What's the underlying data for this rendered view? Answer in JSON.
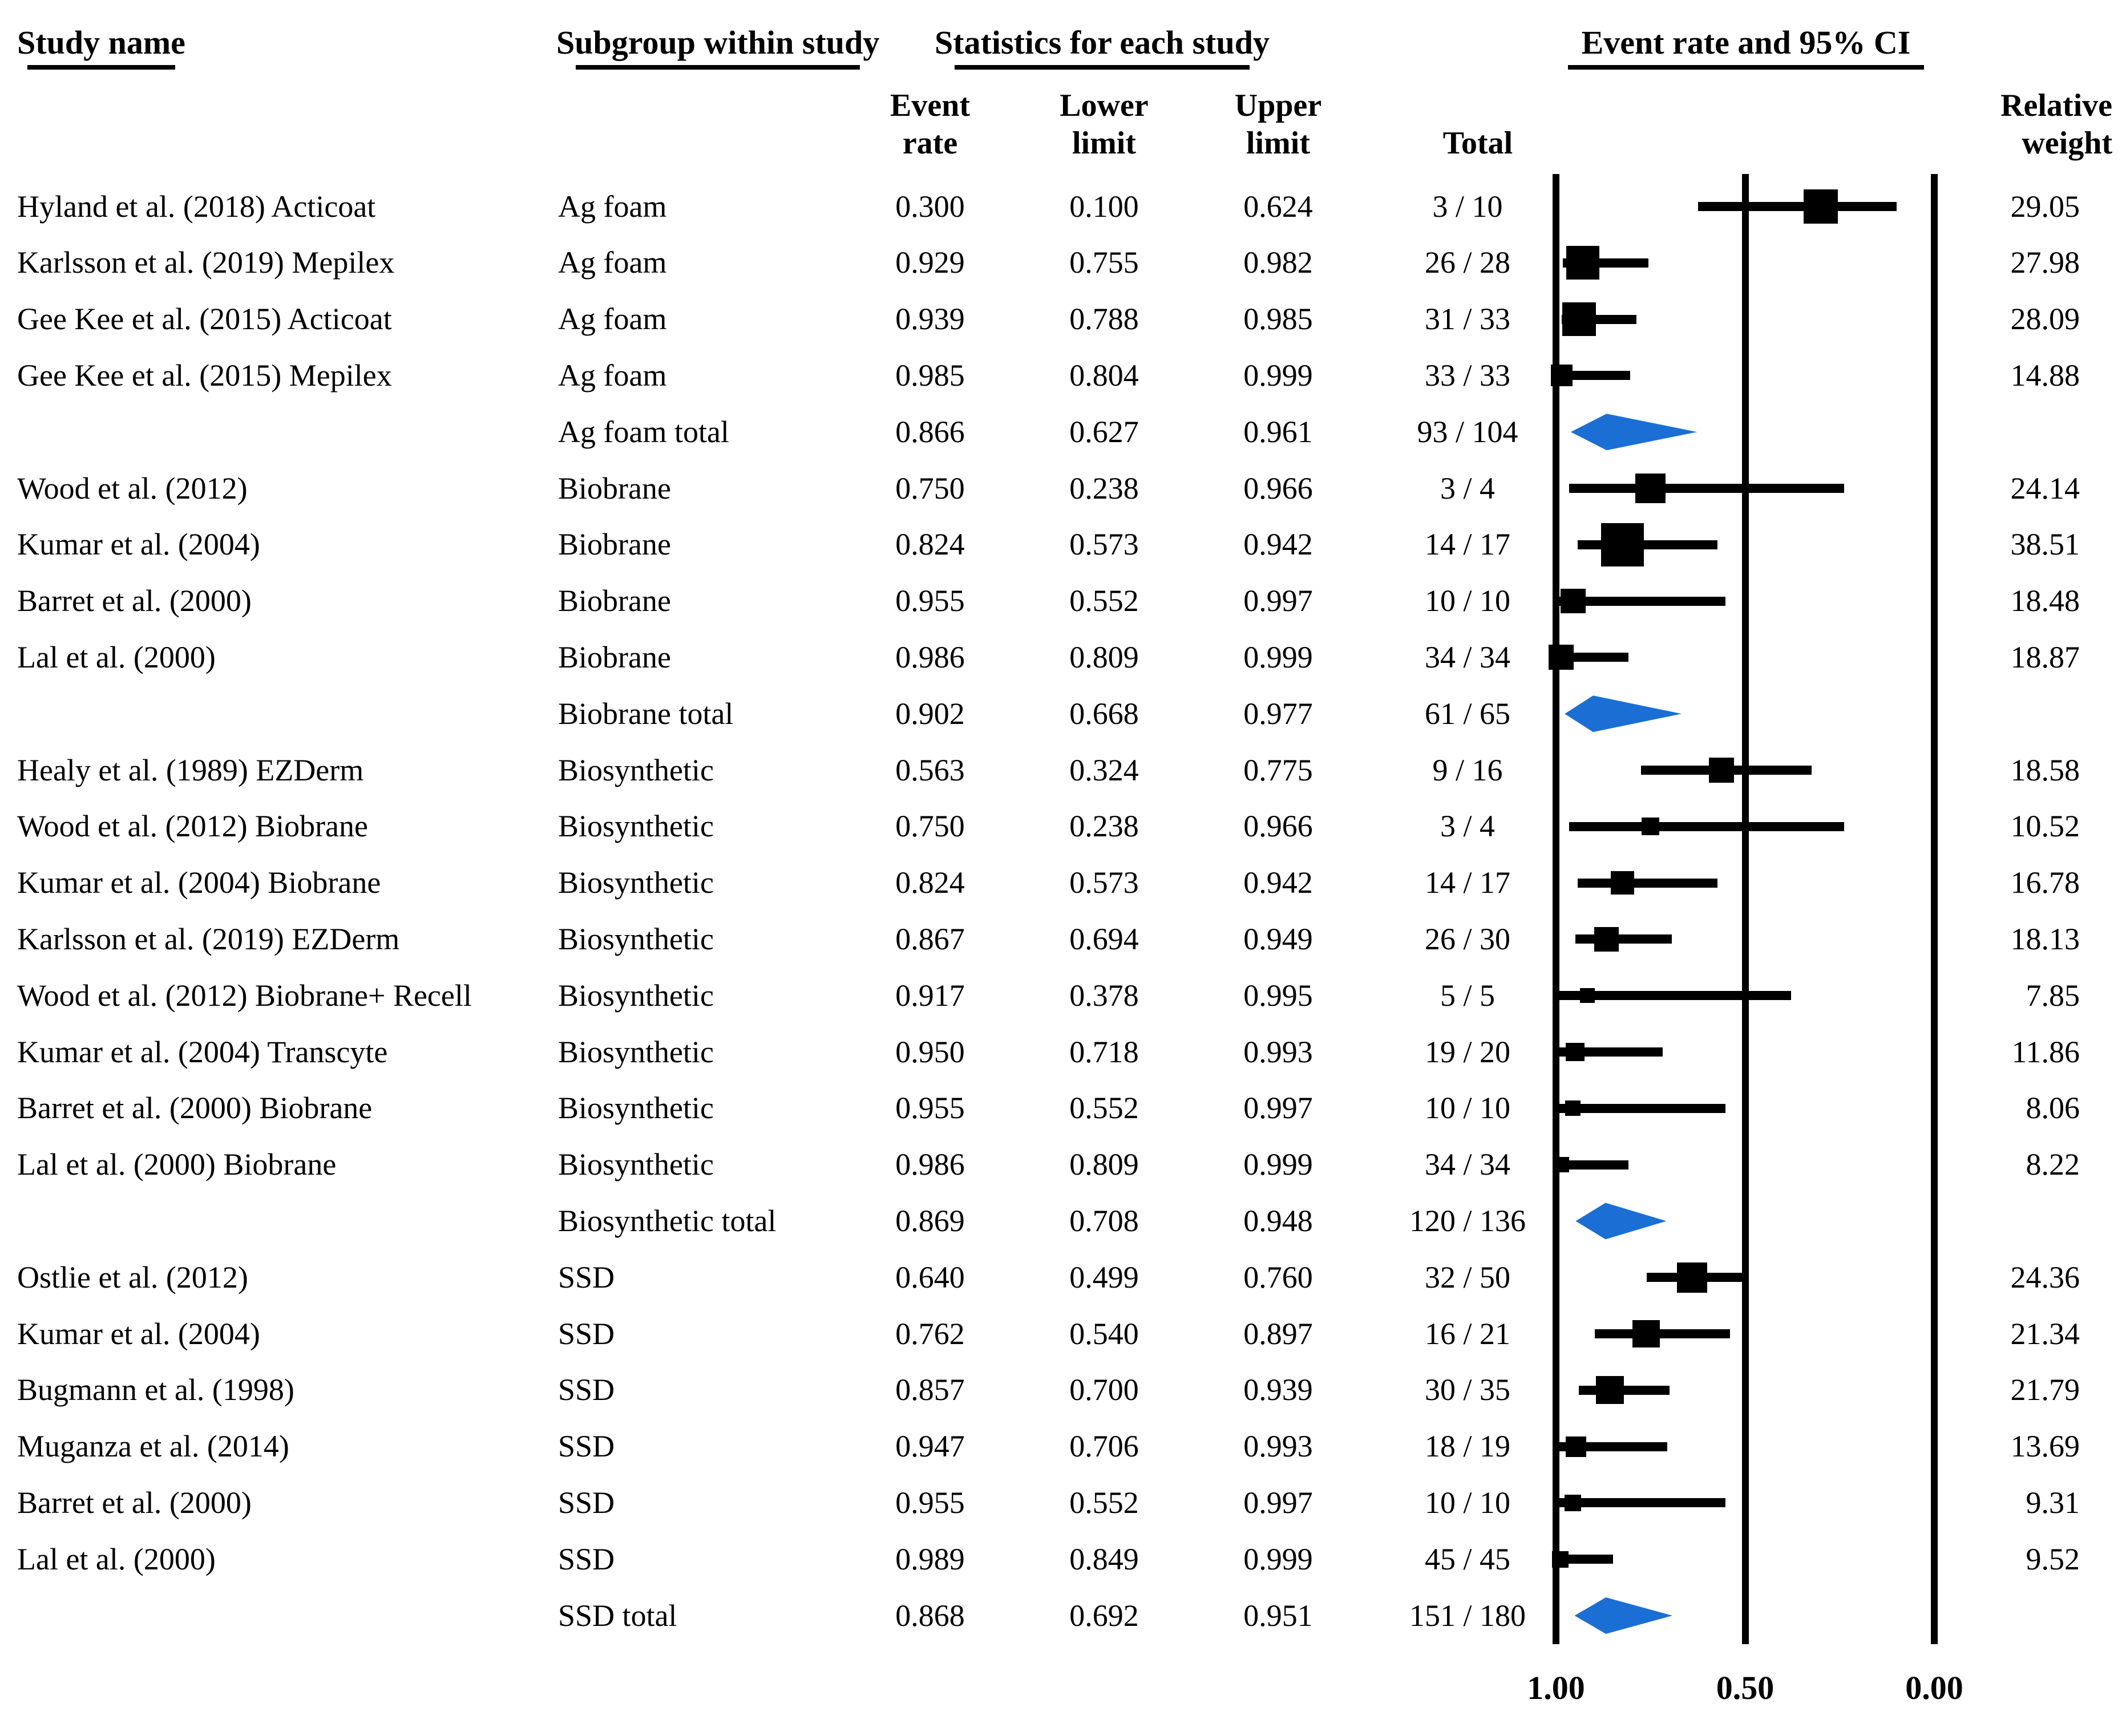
{
  "header": {
    "study_name": "Study name",
    "subgroup": "Subgroup within study",
    "statistics": "Statistics for each study",
    "event_rate_ci": "Event rate and 95% CI"
  },
  "column_headers": {
    "event_line1": "Event",
    "event_line2": "rate",
    "lower_line1": "Lower",
    "lower_line2": "limit",
    "upper_line1": "Upper",
    "upper_line2": "limit",
    "total": "Total",
    "weight_line1": "Relative",
    "weight_line2": "weight"
  },
  "colors": {
    "diamond_fill": "#1B6FD4",
    "marker_fill": "#000000",
    "axis_line": "#000000"
  },
  "chart_data": {
    "type": "forest",
    "title": "Event rate and 95% CI",
    "x_axis": {
      "reversed": true,
      "range": [
        0,
        1
      ],
      "ticks": [
        {
          "label": "1.00",
          "value": 1.0
        },
        {
          "label": "0.50",
          "value": 0.5
        },
        {
          "label": "0.00",
          "value": 0.0
        }
      ]
    },
    "rows": [
      {
        "study": "Hyland et al. (2018) Acticoat",
        "subgroup": "Ag foam",
        "er": "0.300",
        "ll": "0.100",
        "ul": "0.624",
        "total": "3 / 10",
        "weight": "29.05",
        "is_total": false
      },
      {
        "study": "Karlsson et al. (2019) Mepilex",
        "subgroup": "Ag foam",
        "er": "0.929",
        "ll": "0.755",
        "ul": "0.982",
        "total": "26 / 28",
        "weight": "27.98",
        "is_total": false
      },
      {
        "study": "Gee Kee et al. (2015) Acticoat",
        "subgroup": "Ag foam",
        "er": "0.939",
        "ll": "0.788",
        "ul": "0.985",
        "total": "31 / 33",
        "weight": "28.09",
        "is_total": false
      },
      {
        "study": "Gee Kee et al. (2015) Mepilex",
        "subgroup": "Ag foam",
        "er": "0.985",
        "ll": "0.804",
        "ul": "0.999",
        "total": "33 / 33",
        "weight": "14.88",
        "is_total": false
      },
      {
        "study": "",
        "subgroup": "Ag foam total",
        "er": "0.866",
        "ll": "0.627",
        "ul": "0.961",
        "total": "93 / 104",
        "weight": "",
        "is_total": true
      },
      {
        "study": "Wood et al. (2012)",
        "subgroup": "Biobrane",
        "er": "0.750",
        "ll": "0.238",
        "ul": "0.966",
        "total": "3 / 4",
        "weight": "24.14",
        "is_total": false
      },
      {
        "study": "Kumar et al. (2004)",
        "subgroup": "Biobrane",
        "er": "0.824",
        "ll": "0.573",
        "ul": "0.942",
        "total": "14 / 17",
        "weight": "38.51",
        "is_total": false
      },
      {
        "study": "Barret et al. (2000)",
        "subgroup": "Biobrane",
        "er": "0.955",
        "ll": "0.552",
        "ul": "0.997",
        "total": "10 / 10",
        "weight": "18.48",
        "is_total": false
      },
      {
        "study": "Lal et al. (2000)",
        "subgroup": "Biobrane",
        "er": "0.986",
        "ll": "0.809",
        "ul": "0.999",
        "total": "34 / 34",
        "weight": "18.87",
        "is_total": false
      },
      {
        "study": "",
        "subgroup": "Biobrane total",
        "er": "0.902",
        "ll": "0.668",
        "ul": "0.977",
        "total": "61 / 65",
        "weight": "",
        "is_total": true
      },
      {
        "study": "Healy et al. (1989) EZDerm",
        "subgroup": "Biosynthetic",
        "er": "0.563",
        "ll": "0.324",
        "ul": "0.775",
        "total": "9 / 16",
        "weight": "18.58",
        "is_total": false
      },
      {
        "study": "Wood et al. (2012) Biobrane",
        "subgroup": "Biosynthetic",
        "er": "0.750",
        "ll": "0.238",
        "ul": "0.966",
        "total": "3 / 4",
        "weight": "10.52",
        "is_total": false
      },
      {
        "study": "Kumar et al. (2004) Biobrane",
        "subgroup": "Biosynthetic",
        "er": "0.824",
        "ll": "0.573",
        "ul": "0.942",
        "total": "14 / 17",
        "weight": "16.78",
        "is_total": false
      },
      {
        "study": "Karlsson et al. (2019) EZDerm",
        "subgroup": "Biosynthetic",
        "er": "0.867",
        "ll": "0.694",
        "ul": "0.949",
        "total": "26 / 30",
        "weight": "18.13",
        "is_total": false
      },
      {
        "study": "Wood et al. (2012) Biobrane+ Recell",
        "subgroup": "Biosynthetic",
        "er": "0.917",
        "ll": "0.378",
        "ul": "0.995",
        "total": "5 / 5",
        "weight": "7.85",
        "is_total": false
      },
      {
        "study": "Kumar et al. (2004) Transcyte",
        "subgroup": "Biosynthetic",
        "er": "0.950",
        "ll": "0.718",
        "ul": "0.993",
        "total": "19 / 20",
        "weight": "11.86",
        "is_total": false
      },
      {
        "study": "Barret et al. (2000) Biobrane",
        "subgroup": "Biosynthetic",
        "er": "0.955",
        "ll": "0.552",
        "ul": "0.997",
        "total": "10 / 10",
        "weight": "8.06",
        "is_total": false
      },
      {
        "study": "Lal et al. (2000) Biobrane",
        "subgroup": "Biosynthetic",
        "er": "0.986",
        "ll": "0.809",
        "ul": "0.999",
        "total": "34 / 34",
        "weight": "8.22",
        "is_total": false
      },
      {
        "study": "",
        "subgroup": "Biosynthetic total",
        "er": "0.869",
        "ll": "0.708",
        "ul": "0.948",
        "total": "120 / 136",
        "weight": "",
        "is_total": true
      },
      {
        "study": "Ostlie et al. (2012)",
        "subgroup": "SSD",
        "er": "0.640",
        "ll": "0.499",
        "ul": "0.760",
        "total": "32 / 50",
        "weight": "24.36",
        "is_total": false
      },
      {
        "study": "Kumar et al. (2004)",
        "subgroup": "SSD",
        "er": "0.762",
        "ll": "0.540",
        "ul": "0.897",
        "total": "16 / 21",
        "weight": "21.34",
        "is_total": false
      },
      {
        "study": "Bugmann et al. (1998)",
        "subgroup": "SSD",
        "er": "0.857",
        "ll": "0.700",
        "ul": "0.939",
        "total": "30 / 35",
        "weight": "21.79",
        "is_total": false
      },
      {
        "study": "Muganza et al. (2014)",
        "subgroup": "SSD",
        "er": "0.947",
        "ll": "0.706",
        "ul": "0.993",
        "total": "18 / 19",
        "weight": "13.69",
        "is_total": false
      },
      {
        "study": "Barret et al. (2000)",
        "subgroup": "SSD",
        "er": "0.955",
        "ll": "0.552",
        "ul": "0.997",
        "total": "10 / 10",
        "weight": "9.31",
        "is_total": false
      },
      {
        "study": "Lal et al. (2000)",
        "subgroup": "SSD",
        "er": "0.989",
        "ll": "0.849",
        "ul": "0.999",
        "total": "45 / 45",
        "weight": "9.52",
        "is_total": false
      },
      {
        "study": "",
        "subgroup": "SSD total",
        "er": "0.868",
        "ll": "0.692",
        "ul": "0.951",
        "total": "151 / 180",
        "weight": "",
        "is_total": true
      }
    ]
  }
}
